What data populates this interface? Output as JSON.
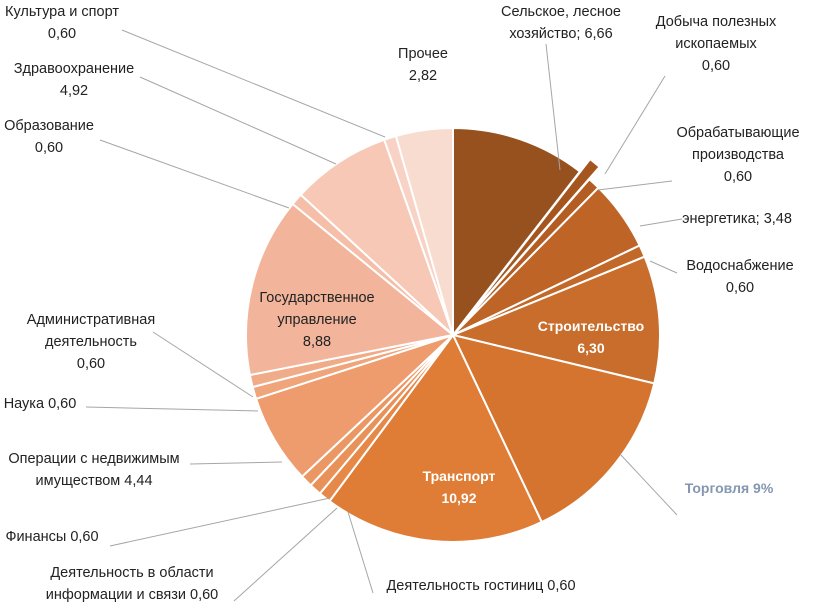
{
  "chart_data": {
    "type": "pie",
    "title": "",
    "start_angle_deg": 0,
    "direction": "clockwise",
    "slices": [
      {
        "key": "agriculture",
        "name": "Сельское, лесное хозяйство;",
        "value": 6.66,
        "value_label": "6,66",
        "color": "#97511f"
      },
      {
        "key": "mining",
        "name": "Добыча полезных ископаемых",
        "value": 0.6,
        "value_label": "0,60",
        "color": "#a5561f",
        "exploded": true
      },
      {
        "key": "manufacturing",
        "name": "Обрабатывающие производства",
        "value": 0.6,
        "value_label": "0,60",
        "color": "#b35d22"
      },
      {
        "key": "energy",
        "name": "энергетика;",
        "value": 3.48,
        "value_label": "3,48",
        "color": "#bd6426"
      },
      {
        "key": "water",
        "name": "Водоснабжение",
        "value": 0.6,
        "value_label": "0,60",
        "color": "#c2692a"
      },
      {
        "key": "construction",
        "name": "Строительство",
        "value": 6.3,
        "value_label": "6,30",
        "color": "#c86d2c"
      },
      {
        "key": "trade",
        "name": "Торговля",
        "value": 9.0,
        "value_label": "9%",
        "color": "#d5742e"
      },
      {
        "key": "transport",
        "name": "Транспорт",
        "value": 10.92,
        "value_label": "10,92",
        "color": "#df7d36"
      },
      {
        "key": "hotels",
        "name": "Деятельность гостиниц",
        "value": 0.6,
        "value_label": "0,60",
        "color": "#e68848"
      },
      {
        "key": "info",
        "name": "Деятельность в области информации и связи",
        "value": 0.6,
        "value_label": "0,60",
        "color": "#e89158"
      },
      {
        "key": "finance",
        "name": "Финансы",
        "value": 0.6,
        "value_label": "0,60",
        "color": "#ea9763"
      },
      {
        "key": "realestate",
        "name": "Операции с недвижимым имуществом",
        "value": 4.44,
        "value_label": "4,44",
        "color": "#ee9c6e"
      },
      {
        "key": "science",
        "name": "Наука",
        "value": 0.6,
        "value_label": "0,60",
        "color": "#efa47a"
      },
      {
        "key": "admin",
        "name": "Административная деятельность",
        "value": 0.6,
        "value_label": "0,60",
        "color": "#f0ac88"
      },
      {
        "key": "government",
        "name": "Государственное управление",
        "value": 8.88,
        "value_label": "8,88",
        "color": "#f2b59b"
      },
      {
        "key": "education",
        "name": "Образование",
        "value": 0.6,
        "value_label": "0,60",
        "color": "#f4bea8"
      },
      {
        "key": "health",
        "name": "Здравоохранение",
        "value": 4.92,
        "value_label": "4,92",
        "color": "#f6c8b5"
      },
      {
        "key": "culture",
        "name": "Культура и спорт",
        "value": 0.6,
        "value_label": "0,60",
        "color": "#f8d2c4"
      },
      {
        "key": "other",
        "name": "Прочее",
        "value": 2.82,
        "value_label": "2,82",
        "color": "#f9dcd0"
      }
    ],
    "labels": {
      "agriculture": [
        "Сельское, лесное",
        "хозяйство;  6,66"
      ],
      "mining": [
        "Добыча полезных",
        "ископаемых",
        "0,60"
      ],
      "manufacturing": [
        "Обрабатывающие",
        "производства",
        "0,60"
      ],
      "energy": [
        "энергетика;  3,48"
      ],
      "water": [
        "Водоснабжение",
        "0,60"
      ],
      "construction": [
        "Строительство",
        "6,30"
      ],
      "trade": [
        "Торговля 9%"
      ],
      "transport": [
        "Транспорт",
        "10,92"
      ],
      "hotels": [
        "Деятельность гостиниц  0,60"
      ],
      "info": [
        "Деятельность в области",
        "информации и связи  0,60"
      ],
      "finance": [
        "Финансы  0,60"
      ],
      "realestate": [
        "Операции с недвижимым",
        "имуществом  4,44"
      ],
      "science": [
        "Наука  0,60"
      ],
      "admin": [
        "Административная",
        "деятельность",
        "0,60"
      ],
      "government": [
        "Государственное",
        "управление",
        "8,88"
      ],
      "education": [
        "Образование",
        "0,60"
      ],
      "health": [
        "Здравоохранение",
        "4,92"
      ],
      "culture": [
        "Культура и спорт",
        "0,60"
      ],
      "other": [
        "Прочее",
        "2,82"
      ]
    },
    "legend": "none"
  }
}
